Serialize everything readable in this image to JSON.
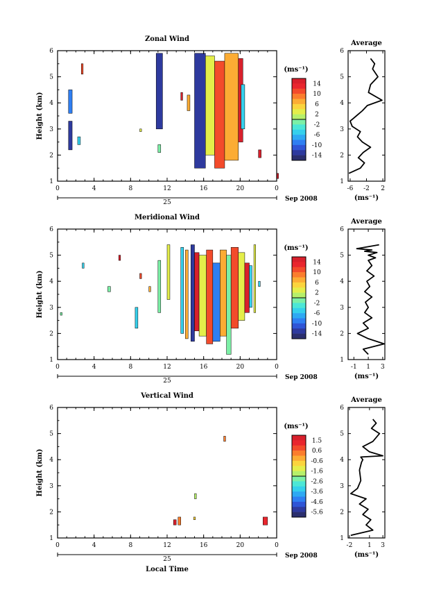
{
  "chart_data": [
    {
      "type": "heatmap",
      "title": "Zonal Wind",
      "ylabel": "Height (km)",
      "xticks": [
        "0",
        "4",
        "8",
        "12",
        "16",
        "20",
        "0"
      ],
      "yticks": [
        "1",
        "2",
        "3",
        "4",
        "5",
        "6"
      ],
      "xlim": [
        0,
        24
      ],
      "ylim": [
        1,
        6
      ],
      "date_label": "25",
      "month_label": "Sep 2008",
      "colorbar": {
        "unit": "(ms⁻¹)",
        "ticks": [
          "14",
          "10",
          "6",
          "2",
          "-2",
          "-6",
          "-10",
          "-14"
        ],
        "range": [
          -16,
          16
        ]
      },
      "blocks": [
        [
          1.2,
          1.6,
          2.2,
          3.3,
          -14
        ],
        [
          1.2,
          1.6,
          3.6,
          4.5,
          -10
        ],
        [
          2.2,
          2.5,
          2.4,
          2.7,
          -6
        ],
        [
          2.6,
          2.8,
          5.1,
          5.5,
          10
        ],
        [
          9.0,
          9.2,
          2.9,
          3.0,
          2
        ],
        [
          10.8,
          11.5,
          3.0,
          5.9,
          -14
        ],
        [
          11.0,
          11.3,
          2.1,
          2.4,
          -2
        ],
        [
          13.5,
          13.7,
          4.1,
          4.4,
          14
        ],
        [
          14.2,
          14.5,
          3.7,
          4.3,
          6
        ],
        [
          15.0,
          16.2,
          1.5,
          5.9,
          -14
        ],
        [
          16.2,
          17.2,
          2.0,
          5.8,
          2
        ],
        [
          17.2,
          18.3,
          1.5,
          5.6,
          10
        ],
        [
          18.3,
          19.8,
          1.8,
          5.9,
          6
        ],
        [
          19.8,
          20.3,
          2.5,
          5.7,
          14
        ],
        [
          20.1,
          20.5,
          3.0,
          4.7,
          -6
        ],
        [
          22.0,
          22.3,
          1.9,
          2.2,
          14
        ],
        [
          24.0,
          24.2,
          1.1,
          1.3,
          14
        ]
      ],
      "profile": {
        "title": "Average",
        "xlabel": "(ms⁻¹)",
        "xticks": [
          "-6",
          "-2",
          "2"
        ],
        "xlim": [
          -6.5,
          2.5
        ],
        "x": [
          -6.3,
          -3.5,
          -2.5,
          -4.0,
          -2.8,
          -1.0,
          -3.0,
          -4.2,
          -3.5,
          -5.5,
          -6.0,
          -4.5,
          -3.0,
          -1.8,
          1.8,
          -1.5,
          -1.0,
          0.8,
          -0.5,
          0.0,
          -1.0
        ],
        "y": [
          1.3,
          1.5,
          1.7,
          1.9,
          2.1,
          2.3,
          2.5,
          2.7,
          2.9,
          3.1,
          3.3,
          3.5,
          3.7,
          3.9,
          4.1,
          4.4,
          4.7,
          5.0,
          5.3,
          5.5,
          5.7
        ]
      }
    },
    {
      "type": "heatmap",
      "title": "Meridional Wind",
      "ylabel": "Height (km)",
      "xticks": [
        "0",
        "4",
        "8",
        "12",
        "16",
        "20",
        "0"
      ],
      "yticks": [
        "1",
        "2",
        "3",
        "4",
        "5",
        "6"
      ],
      "xlim": [
        0,
        24
      ],
      "ylim": [
        1,
        6
      ],
      "date_label": "25",
      "month_label": "Sep 2008",
      "colorbar": {
        "unit": "(ms⁻¹)",
        "ticks": [
          "14",
          "10",
          "6",
          "2",
          "-2",
          "-6",
          "-10",
          "-14"
        ],
        "range": [
          -16,
          16
        ]
      },
      "blocks": [
        [
          0.3,
          0.5,
          2.7,
          2.8,
          -2
        ],
        [
          2.7,
          2.9,
          4.5,
          4.7,
          -6
        ],
        [
          5.5,
          5.8,
          3.6,
          3.8,
          -2
        ],
        [
          6.7,
          6.9,
          4.8,
          5.0,
          14
        ],
        [
          8.5,
          8.8,
          2.2,
          3.0,
          -6
        ],
        [
          9.0,
          9.2,
          4.1,
          4.3,
          10
        ],
        [
          10.0,
          10.2,
          3.6,
          3.8,
          6
        ],
        [
          11.0,
          11.3,
          2.8,
          4.8,
          -2
        ],
        [
          12.0,
          12.3,
          3.3,
          5.4,
          2
        ],
        [
          13.5,
          13.8,
          2.0,
          5.3,
          -6
        ],
        [
          14.0,
          14.3,
          1.8,
          5.2,
          6
        ],
        [
          14.6,
          15.0,
          1.7,
          5.4,
          -14
        ],
        [
          15.0,
          15.5,
          2.1,
          5.1,
          14
        ],
        [
          15.5,
          16.3,
          1.9,
          5.0,
          2
        ],
        [
          16.3,
          17.0,
          1.6,
          5.2,
          10
        ],
        [
          17.0,
          17.8,
          1.7,
          4.7,
          -10
        ],
        [
          17.8,
          18.5,
          1.9,
          5.2,
          6
        ],
        [
          18.5,
          19.0,
          1.2,
          5.0,
          -2
        ],
        [
          19.0,
          19.8,
          2.2,
          5.3,
          10
        ],
        [
          19.8,
          20.5,
          2.5,
          5.1,
          2
        ],
        [
          20.5,
          21.0,
          2.8,
          4.7,
          14
        ],
        [
          21.0,
          21.3,
          3.0,
          4.6,
          -6
        ],
        [
          21.5,
          21.7,
          2.8,
          5.4,
          2
        ],
        [
          22.0,
          22.2,
          3.8,
          4.0,
          -6
        ]
      ],
      "profile": {
        "title": "Average",
        "xlabel": "(ms⁻¹)",
        "xticks": [
          "-1",
          "1",
          "3"
        ],
        "xlim": [
          -1.8,
          3.3
        ],
        "x": [
          1.0,
          0.3,
          3.2,
          1.0,
          -0.5,
          1.0,
          0.3,
          1.5,
          0.5,
          1.0,
          0.6,
          1.5,
          0.5,
          1.2,
          0.8,
          1.8,
          0.8,
          1.5,
          1.0,
          2.0,
          1.0,
          2.2,
          0.5,
          1.5,
          -0.6,
          2.5
        ],
        "y": [
          1.2,
          1.4,
          1.6,
          1.8,
          2.0,
          2.2,
          2.4,
          2.6,
          2.8,
          3.0,
          3.2,
          3.4,
          3.6,
          3.8,
          4.0,
          4.2,
          4.4,
          4.6,
          4.8,
          4.9,
          5.0,
          5.1,
          5.15,
          5.2,
          5.25,
          5.4
        ]
      }
    },
    {
      "type": "heatmap",
      "title": "Vertical Wind",
      "xlabel": "Local Time",
      "ylabel": "Height (km)",
      "xticks": [
        "0",
        "4",
        "8",
        "12",
        "16",
        "20",
        "0"
      ],
      "yticks": [
        "1",
        "2",
        "3",
        "4",
        "5",
        "6"
      ],
      "xlim": [
        0,
        24
      ],
      "ylim": [
        1,
        6
      ],
      "date_label": "25",
      "month_label": "Sep 2008",
      "colorbar": {
        "unit": "(ms⁻¹)",
        "ticks": [
          "1.5",
          "0.6",
          "-0.6",
          "-1.6",
          "-2.6",
          "-3.6",
          "-4.6",
          "-5.6"
        ],
        "range": [
          -6,
          2
        ]
      },
      "blocks": [
        [
          12.7,
          13.0,
          1.5,
          1.7,
          1.5
        ],
        [
          13.2,
          13.5,
          1.5,
          1.8,
          0.4
        ],
        [
          14.9,
          15.1,
          1.7,
          1.8,
          -1.0
        ],
        [
          15.0,
          15.2,
          2.5,
          2.7,
          -2.0
        ],
        [
          18.2,
          18.4,
          4.7,
          4.9,
          0.2
        ],
        [
          22.5,
          23.0,
          1.5,
          1.8,
          1.2
        ]
      ],
      "profile": {
        "title": "Average",
        "xlabel": "(ms⁻¹)",
        "xticks": [
          "-2",
          "1",
          "3"
        ],
        "xlim": [
          -2.2,
          3.3
        ],
        "x": [
          -1.8,
          1.5,
          0.5,
          1.2,
          0.0,
          0.8,
          -0.5,
          0.5,
          -1.8,
          -0.8,
          -0.3,
          -0.5,
          -0.2,
          0.0,
          -0.3,
          3.0,
          1.0,
          0.0,
          1.5,
          2.5,
          1.3,
          2.0,
          1.5
        ],
        "y": [
          1.1,
          1.3,
          1.5,
          1.7,
          1.9,
          2.1,
          2.3,
          2.5,
          2.7,
          2.9,
          3.2,
          3.6,
          3.9,
          4.0,
          4.1,
          4.15,
          4.3,
          4.5,
          4.7,
          5.0,
          5.2,
          5.4,
          5.55
        ]
      }
    }
  ]
}
